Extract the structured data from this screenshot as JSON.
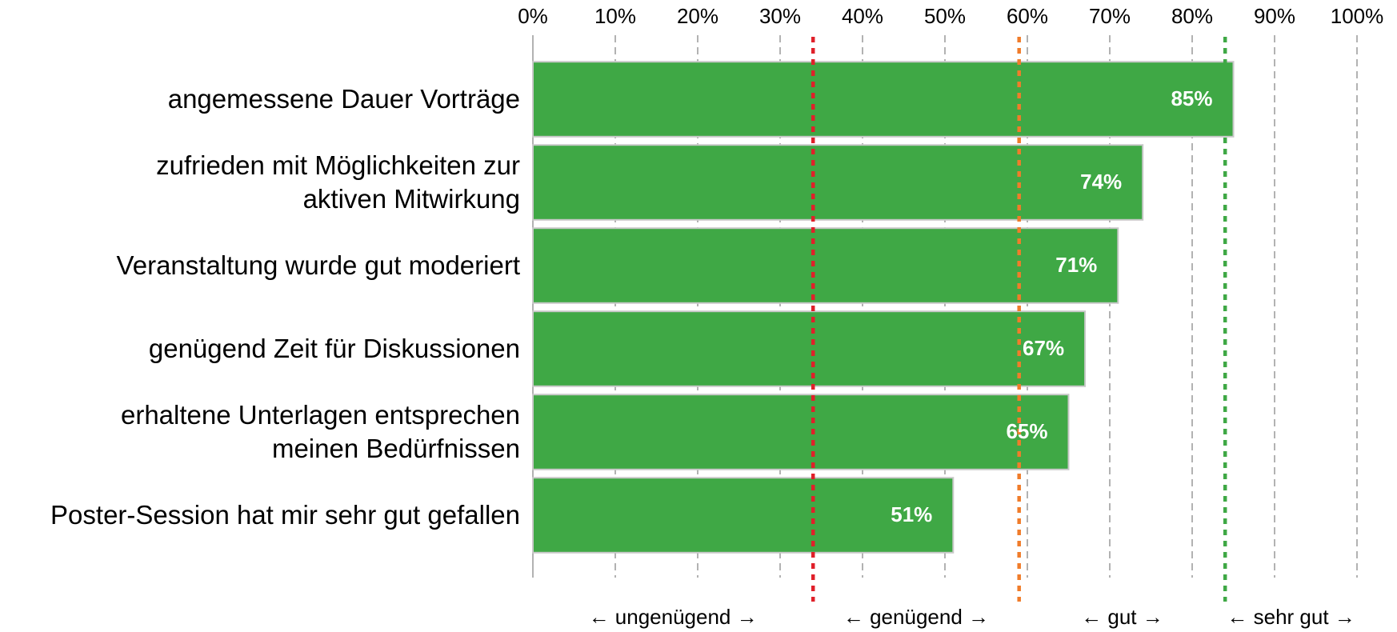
{
  "chart_data": {
    "type": "bar",
    "orientation": "horizontal",
    "categories": [
      "angemessene Dauer Vorträge",
      "zufrieden mit Möglichkeiten zur\naktiven Mitwirkung",
      "Veranstaltung wurde gut moderiert",
      "genügend Zeit für Diskussionen",
      "erhaltene Unterlagen entsprechen\nmeinen Bedürfnissen",
      "Poster-Session hat mir sehr gut gefallen"
    ],
    "values": [
      85,
      74,
      71,
      67,
      65,
      51
    ],
    "value_labels": [
      "85%",
      "74%",
      "71%",
      "67%",
      "65%",
      "51%"
    ],
    "color": "#3fa845",
    "xlim": [
      0,
      100
    ],
    "xticks": [
      {
        "value": 0,
        "label": "0%"
      },
      {
        "value": 10,
        "label": "10%"
      },
      {
        "value": 20,
        "label": "20%"
      },
      {
        "value": 30,
        "label": "30%"
      },
      {
        "value": 40,
        "label": "40%"
      },
      {
        "value": 50,
        "label": "50%"
      },
      {
        "value": 60,
        "label": "60%"
      },
      {
        "value": 70,
        "label": "70%"
      },
      {
        "value": 80,
        "label": "80%"
      },
      {
        "value": 90,
        "label": "90%"
      },
      {
        "value": 100,
        "label": "100%"
      }
    ],
    "grid": true,
    "thresholds": [
      {
        "value": 34,
        "color": "#e0202a"
      },
      {
        "value": 59,
        "color": "#f07c2a"
      },
      {
        "value": 84,
        "color": "#3fa845"
      }
    ],
    "zones": [
      "← ungenügend →",
      "← genügend →",
      "← gut →",
      "← sehr gut →"
    ]
  }
}
